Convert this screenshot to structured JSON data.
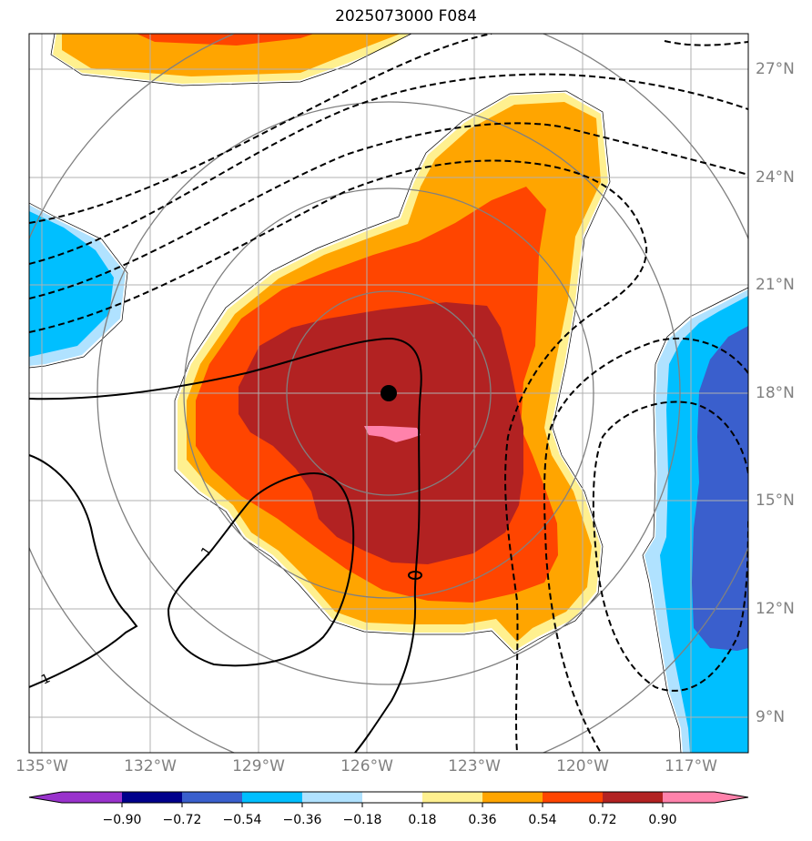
{
  "title": "2025073000 F084",
  "lon_labels": [
    "135°W",
    "132°W",
    "129°W",
    "126°W",
    "123°W",
    "120°W",
    "117°W"
  ],
  "lat_labels": [
    "27°N",
    "24°N",
    "21°N",
    "18°N",
    "15°N",
    "12°N",
    "9°N"
  ],
  "colorbar": {
    "ticks": [
      "−0.90",
      "−0.72",
      "−0.54",
      "−0.36",
      "−0.18",
      "0.18",
      "0.36",
      "0.54",
      "0.72",
      "0.90"
    ],
    "colors": {
      "under": "#9932cc",
      "b1": "#00008b",
      "b2": "#3a5fcd",
      "b3": "#00bfff",
      "b4": "#b0e2ff",
      "b5": "#ffffff",
      "b6": "#fff08f",
      "b7": "#ffa500",
      "b8": "#ff4500",
      "b9": "#b22222",
      "over": "#ff82ab"
    }
  },
  "contour_label": "1"
}
